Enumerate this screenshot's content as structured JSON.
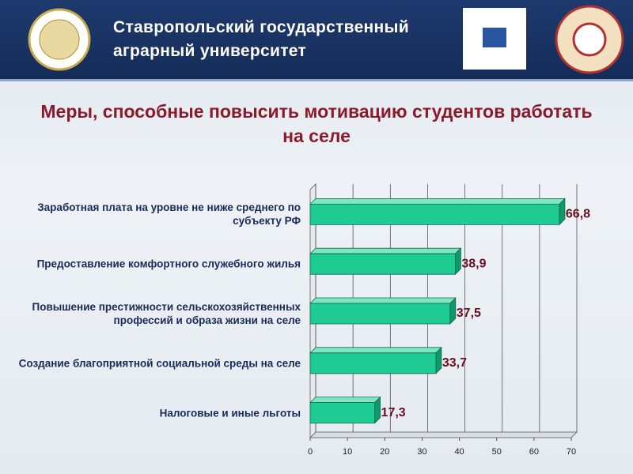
{
  "header": {
    "title_lines": [
      "Ставропольский государственный",
      "аграрный университет"
    ]
  },
  "chart_data": {
    "type": "barh",
    "title": "Меры, способные повысить мотивацию студентов работать на селе",
    "categories": [
      "Заработная плата на уровне не ниже среднего по субъекту РФ",
      "Предоставление комфортного служебного жилья",
      "Повышение престижности сельскохозяйственных профессий и образа жизни на селе",
      "Создание благоприятной социальной среды на селе",
      "Налоговые и иные льготы"
    ],
    "values": [
      66.8,
      38.9,
      37.5,
      33.7,
      17.3
    ],
    "value_labels": [
      "66,8",
      "38,9",
      "37,5",
      "33,7",
      "17,3"
    ],
    "color": "#1ecb93",
    "xlim": [
      0,
      70
    ],
    "xticks": [
      0,
      10,
      20,
      30,
      40,
      50,
      60,
      70
    ],
    "grid": true
  }
}
